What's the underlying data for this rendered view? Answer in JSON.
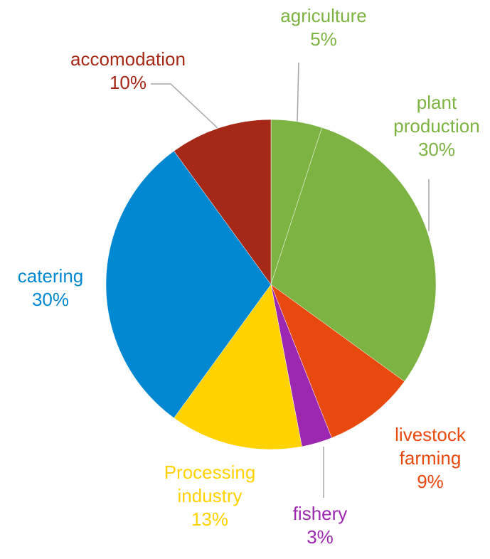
{
  "chart_data": {
    "type": "pie",
    "categories": [
      "agriculture",
      "plant production",
      "livestock farming",
      "fishery",
      "Processing industry",
      "catering",
      "accomodation"
    ],
    "values": [
      5,
      30,
      9,
      3,
      13,
      30,
      10
    ],
    "value_labels": [
      "5%",
      "30%",
      "9%",
      "3%",
      "13%",
      "30%",
      "10%"
    ],
    "colors": [
      "#7cb342",
      "#7cb342",
      "#e8490f",
      "#9c27b0",
      "#ffd200",
      "#0288d1",
      "#a62816"
    ]
  }
}
